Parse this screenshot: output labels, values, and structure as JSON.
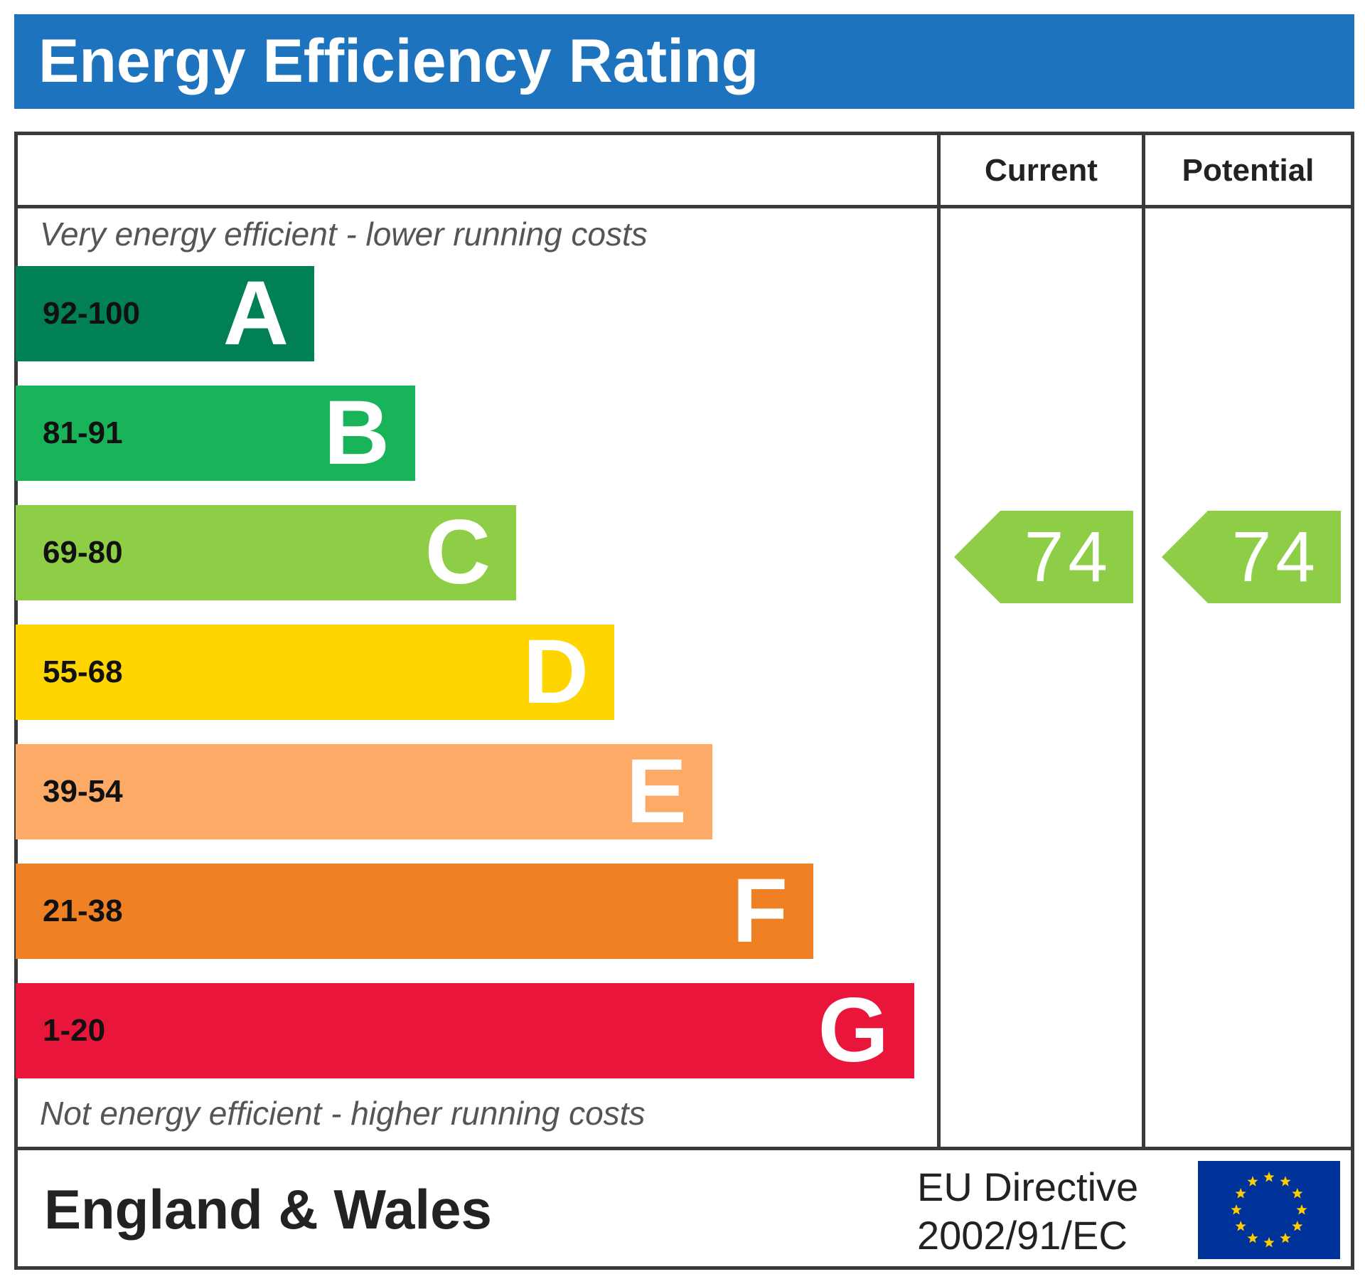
{
  "title": "Energy Efficiency Rating",
  "columns": {
    "current": "Current",
    "potential": "Potential"
  },
  "top_note": "Very energy efficient - lower running costs",
  "bottom_note": "Not energy efficient - higher running costs",
  "bands": [
    {
      "range": "92-100",
      "letter": "A",
      "color": "#008054"
    },
    {
      "range": "81-91",
      "letter": "B",
      "color": "#19b459"
    },
    {
      "range": "69-80",
      "letter": "C",
      "color": "#8dce46"
    },
    {
      "range": "55-68",
      "letter": "D",
      "color": "#ffd500"
    },
    {
      "range": "39-54",
      "letter": "E",
      "color": "#fcaa65"
    },
    {
      "range": "21-38",
      "letter": "F",
      "color": "#ef8023"
    },
    {
      "range": "1-20",
      "letter": "G",
      "color": "#e9153b"
    }
  ],
  "current_rating": {
    "value": "74",
    "band": "C",
    "color": "#8dce46"
  },
  "potential_rating": {
    "value": "74",
    "band": "C",
    "color": "#8dce46"
  },
  "footer": {
    "region": "England & Wales",
    "directive_line1": "EU Directive",
    "directive_line2": "2002/91/EC",
    "flag_icon": "eu-flag-icon",
    "flag_color": "#003399",
    "star_color": "#ffcc00"
  }
}
